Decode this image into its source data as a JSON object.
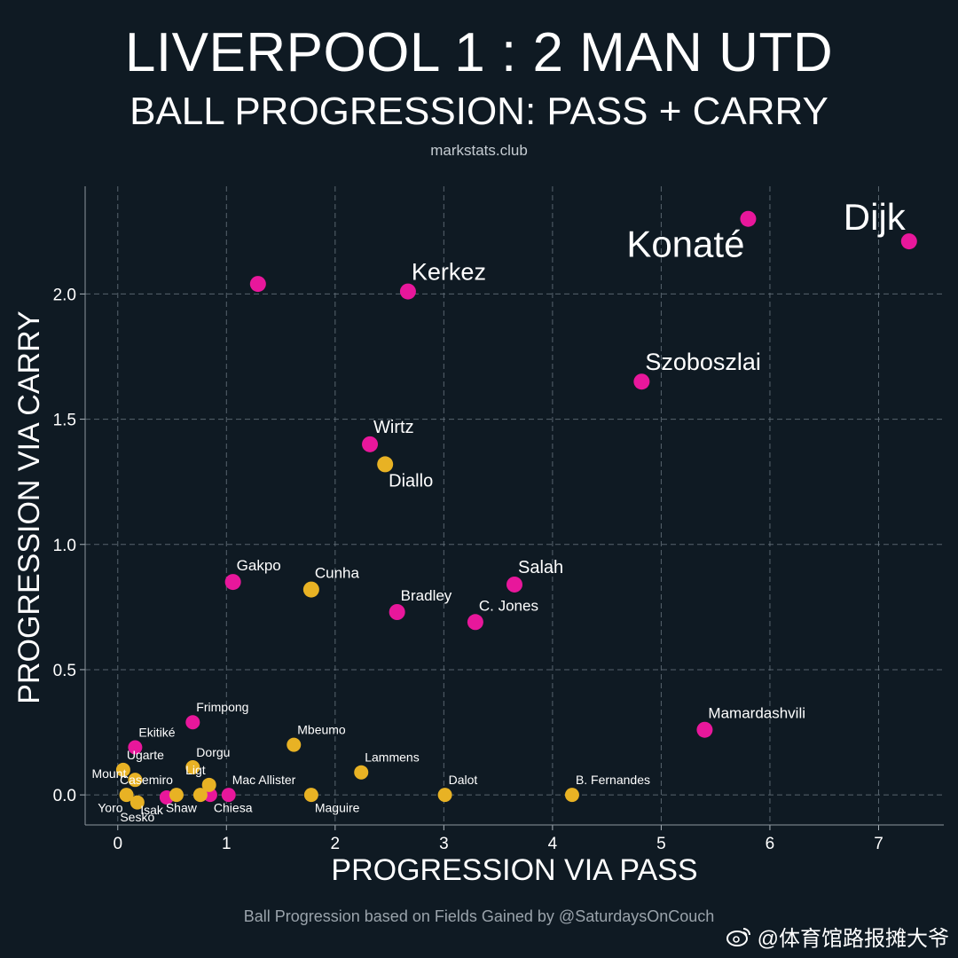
{
  "header": {
    "title": "LIVERPOOL 1 : 2 MAN UTD",
    "subtitle": "BALL PROGRESSION: PASS + CARRY",
    "source": "markstats.club"
  },
  "footer": {
    "note": "Ball Progression based on Fields Gained by @SaturdaysOnCouch",
    "watermark": "@体育馆路报摊大爷",
    "watermark_icon": "weibo-icon"
  },
  "colors": {
    "background": "#0f1a23",
    "liverpool": "#e8179b",
    "man_utd": "#e8b224",
    "grid": "#6a7680"
  },
  "chart_data": {
    "type": "scatter",
    "xlabel": "PROGRESSION VIA PASS",
    "ylabel": "PROGRESSION VIA CARRY",
    "xlim": [
      -0.3,
      7.6
    ],
    "ylim": [
      -0.12,
      2.43
    ],
    "xticks": [
      0,
      1,
      2,
      3,
      4,
      5,
      6,
      7
    ],
    "yticks": [
      0.0,
      0.5,
      1.0,
      1.5,
      2.0
    ],
    "ytick_labels": [
      "0.0",
      "0.5",
      "1.0",
      "1.5",
      "2.0"
    ],
    "grid": true,
    "series": [
      {
        "team": "Liverpool",
        "color": "#e8179b",
        "points": [
          {
            "name": "Dijk",
            "x": 7.28,
            "y": 2.21,
            "size": "xlarge",
            "label_pos": "above-left"
          },
          {
            "name": "Konaté",
            "x": 5.8,
            "y": 2.3,
            "size": "xlarge",
            "label_pos": "below-left"
          },
          {
            "name": "",
            "x": 1.29,
            "y": 2.04,
            "size": "small",
            "label_pos": "right"
          },
          {
            "name": "Kerkez",
            "x": 2.67,
            "y": 2.01,
            "size": "large",
            "label_pos": "above-right"
          },
          {
            "name": "Szoboszlai",
            "x": 4.82,
            "y": 1.65,
            "size": "large",
            "label_pos": "above-right"
          },
          {
            "name": "Wirtz",
            "x": 2.32,
            "y": 1.4,
            "size": "medium",
            "label_pos": "above-right"
          },
          {
            "name": "Salah",
            "x": 3.65,
            "y": 0.84,
            "size": "medium",
            "label_pos": "above-right"
          },
          {
            "name": "Gakpo",
            "x": 1.06,
            "y": 0.85,
            "size": "small",
            "label_pos": "above-right"
          },
          {
            "name": "Bradley",
            "x": 2.57,
            "y": 0.73,
            "size": "small",
            "label_pos": "above-right"
          },
          {
            "name": "C. Jones",
            "x": 3.29,
            "y": 0.69,
            "size": "small",
            "label_pos": "above-right"
          },
          {
            "name": "Mamardashvili",
            "x": 5.4,
            "y": 0.26,
            "size": "small",
            "label_pos": "above-right"
          },
          {
            "name": "Frimpong",
            "x": 0.69,
            "y": 0.29,
            "size": "tiny",
            "label_pos": "above-right"
          },
          {
            "name": "Ekitiké",
            "x": 0.16,
            "y": 0.19,
            "size": "tiny",
            "label_pos": "above-right"
          },
          {
            "name": "Mac Allister",
            "x": 1.02,
            "y": 0.0,
            "size": "tiny",
            "label_pos": "above-right"
          },
          {
            "name": "Chiesa",
            "x": 0.85,
            "y": 0.0,
            "size": "tiny",
            "label_pos": "below-right"
          },
          {
            "name": "Isak",
            "x": 0.45,
            "y": -0.01,
            "size": "tiny",
            "label_pos": "below-left"
          }
        ]
      },
      {
        "team": "Man Utd",
        "color": "#e8b224",
        "points": [
          {
            "name": "Diallo",
            "x": 2.46,
            "y": 1.32,
            "size": "medium",
            "label_pos": "below-right"
          },
          {
            "name": "Cunha",
            "x": 1.78,
            "y": 0.82,
            "size": "small",
            "label_pos": "above-right"
          },
          {
            "name": "Mbeumo",
            "x": 1.62,
            "y": 0.2,
            "size": "tiny",
            "label_pos": "above-right"
          },
          {
            "name": "Lammens",
            "x": 2.24,
            "y": 0.09,
            "size": "tiny",
            "label_pos": "above-right"
          },
          {
            "name": "Dalot",
            "x": 3.01,
            "y": 0.0,
            "size": "tiny",
            "label_pos": "above-right"
          },
          {
            "name": "B. Fernandes",
            "x": 4.18,
            "y": 0.0,
            "size": "tiny",
            "label_pos": "above-right"
          },
          {
            "name": "Maguire",
            "x": 1.78,
            "y": 0.0,
            "size": "tiny",
            "label_pos": "below-right"
          },
          {
            "name": "Dorgu",
            "x": 0.69,
            "y": 0.11,
            "size": "tiny",
            "label_pos": "above-right"
          },
          {
            "name": "Ligt",
            "x": 0.84,
            "y": 0.04,
            "size": "tiny",
            "label_pos": "above-left"
          },
          {
            "name": "Shaw",
            "x": 0.76,
            "y": 0.0,
            "size": "tiny",
            "label_pos": "below-left"
          },
          {
            "name": "Ugarte",
            "x": 0.05,
            "y": 0.1,
            "size": "tiny",
            "label_pos": "above-right"
          },
          {
            "name": "Mount",
            "x": 0.16,
            "y": 0.06,
            "size": "tiny",
            "label_pos": "left"
          },
          {
            "name": "Casemiro",
            "x": 0.54,
            "y": 0.0,
            "size": "tiny",
            "label_pos": "above-left"
          },
          {
            "name": "Yoro",
            "x": 0.08,
            "y": 0.0,
            "size": "tiny",
            "label_pos": "below-left"
          },
          {
            "name": "Sesko",
            "x": 0.18,
            "y": -0.03,
            "size": "tiny",
            "label_pos": "below"
          }
        ]
      }
    ]
  }
}
